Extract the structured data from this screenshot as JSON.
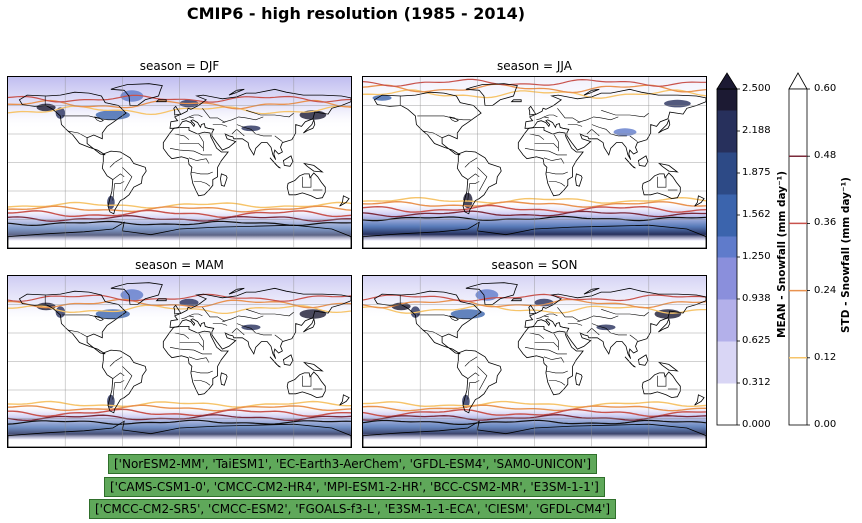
{
  "figure": {
    "title": "CMIP6 - high resolution (1985 - 2014)"
  },
  "panels": [
    {
      "title": "season = DJF",
      "key": "DJF"
    },
    {
      "title": "season = JJA",
      "key": "JJA"
    },
    {
      "title": "season = MAM",
      "key": "MAM"
    },
    {
      "title": "season = SON",
      "key": "SON"
    }
  ],
  "colorbar_mean": {
    "label": "MEAN - Snowfall (mm day⁻¹)",
    "ticks": [
      "0.000",
      "0.312",
      "0.625",
      "0.938",
      "1.250",
      "1.562",
      "1.875",
      "2.188",
      "2.500"
    ],
    "range": [
      0,
      2.5
    ],
    "extend": "max",
    "colors": [
      "#ffffff",
      "#d9d6f5",
      "#b3b0ea",
      "#8a8fdc",
      "#5f7bcb",
      "#3b64ad",
      "#2d4a86",
      "#27305c",
      "#1c1a33"
    ]
  },
  "colorbar_std": {
    "label": "STD - Snowfall (mm day⁻¹)",
    "ticks": [
      "0.00",
      "0.12",
      "0.24",
      "0.36",
      "0.48",
      "0.60"
    ],
    "range": [
      0,
      0.6
    ],
    "extend": "max",
    "contour_levels": [
      0.12,
      0.24,
      0.36,
      0.48
    ],
    "contour_colors": [
      "#f6c46a",
      "#e9924f",
      "#c8524c",
      "#7a2a3a"
    ]
  },
  "model_groups": [
    "['NorESM2-MM', 'TaiESM1', 'EC-Earth3-AerChem', 'GFDL-ESM4', 'SAM0-UNICON']",
    "['CAMS-CSM1-0', 'CMCC-CM2-HR4', 'MPI-ESM1-2-HR', 'BCC-CSM2-MR', 'E3SM-1-1']",
    "['CMCC-CM2-SR5', 'CMCC-ESM2', 'FGOALS-f3-L', 'E3SM-1-1-ECA', 'CIESM', 'GFDL-CM4']"
  ]
}
